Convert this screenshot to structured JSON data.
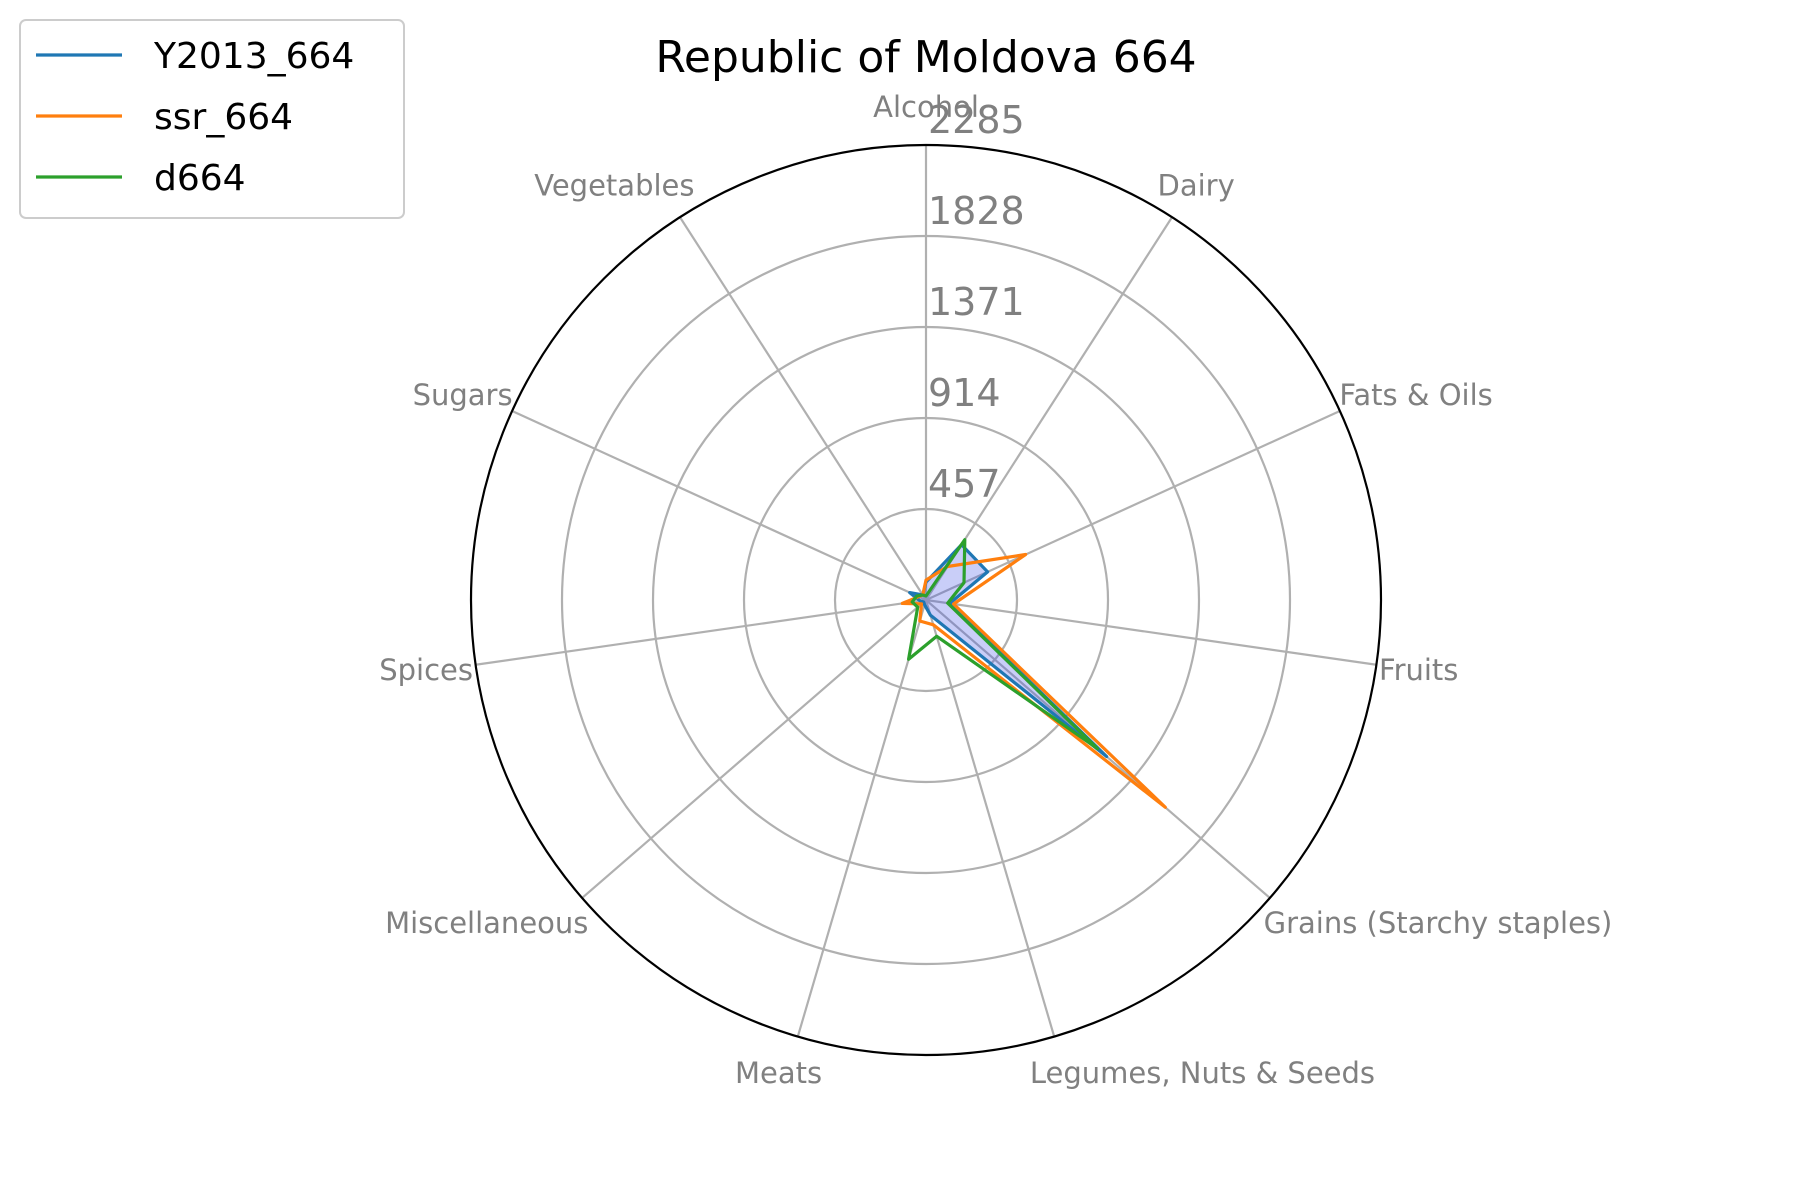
{
  "chart_data": {
    "type": "radar",
    "title": "Republic of Moldova 664",
    "categories": [
      "Alcohol",
      "Dairy",
      "Fats & Oils",
      "Fruits",
      "Grains (Starchy staples)",
      "Legumes, Nuts & Seeds",
      "Meats",
      "Miscellaneous",
      "Spices",
      "Sugars",
      "Vegetables"
    ],
    "rticks": [
      "457",
      "914",
      "1371",
      "1828",
      "2285"
    ],
    "rmax": 2285,
    "grid": true,
    "fill_series": "Y2013_664",
    "legend_position": "top-left",
    "series": [
      {
        "name": "Y2013_664",
        "color": "#1f77b4",
        "values": [
          90,
          330,
          340,
          120,
          1200,
          80,
          25,
          15,
          30,
          90,
          30
        ]
      },
      {
        "name": "ssr_664",
        "color": "#ff7f0e",
        "values": [
          100,
          200,
          550,
          140,
          1590,
          130,
          110,
          30,
          120,
          40,
          30
        ]
      },
      {
        "name": "d664",
        "color": "#2ca02c",
        "values": [
          20,
          360,
          210,
          110,
          1140,
          190,
          310,
          55,
          70,
          50,
          30
        ]
      }
    ]
  }
}
